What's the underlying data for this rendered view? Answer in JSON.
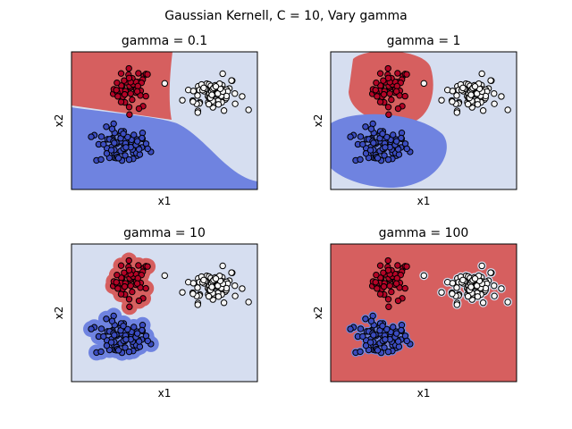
{
  "suptitle": "Gaussian Kernell, C = 10, Vary gamma",
  "colors": {
    "class_red": "#b40426",
    "class_blue": "#3b4cc0",
    "class_white": "#f7f7f7",
    "region_red": "#d65f5f",
    "region_blue": "#6f83e0",
    "region_light": "#d6def0",
    "marker_edge": "#000000"
  },
  "chart_data": [
    {
      "type": "scatter",
      "title": "gamma = 0.1",
      "xlabel": "x1",
      "ylabel": "x2",
      "xlim": [
        -3,
        8
      ],
      "ylim": [
        -4,
        5
      ],
      "grid": false,
      "ticks_visible": false,
      "background": "decision regions (red top-left, blue bottom-left, light right)"
    },
    {
      "type": "scatter",
      "title": "gamma = 1",
      "xlabel": "x1",
      "ylabel": "x2",
      "xlim": [
        -3,
        8
      ],
      "ylim": [
        -4,
        5
      ],
      "grid": false,
      "ticks_visible": false,
      "background": "decision regions (red and blue blobs around clusters, light elsewhere)"
    },
    {
      "type": "scatter",
      "title": "gamma = 10",
      "xlabel": "x1",
      "ylabel": "x2",
      "xlim": [
        -3,
        8
      ],
      "ylim": [
        -4,
        5
      ],
      "grid": false,
      "ticks_visible": false,
      "background": "decision regions (tight halos around red and blue points, light elsewhere)"
    },
    {
      "type": "scatter",
      "title": "gamma = 100",
      "xlabel": "x1",
      "ylabel": "x2",
      "xlim": [
        -3,
        8
      ],
      "ylim": [
        -4,
        5
      ],
      "grid": false,
      "ticks_visible": false,
      "background": "decision regions (red everywhere except tiny halos at points)"
    }
  ],
  "clusters": [
    {
      "class": "red",
      "center": [
        0.6,
        2.6
      ],
      "spread": [
        0.55,
        0.65
      ],
      "count": 50
    },
    {
      "class": "blue",
      "center": [
        0.0,
        -1.2
      ],
      "spread": [
        0.8,
        0.6
      ],
      "count": 75
    },
    {
      "class": "white",
      "center": [
        5.3,
        2.3
      ],
      "spread": [
        0.8,
        0.55
      ],
      "count": 75
    }
  ]
}
